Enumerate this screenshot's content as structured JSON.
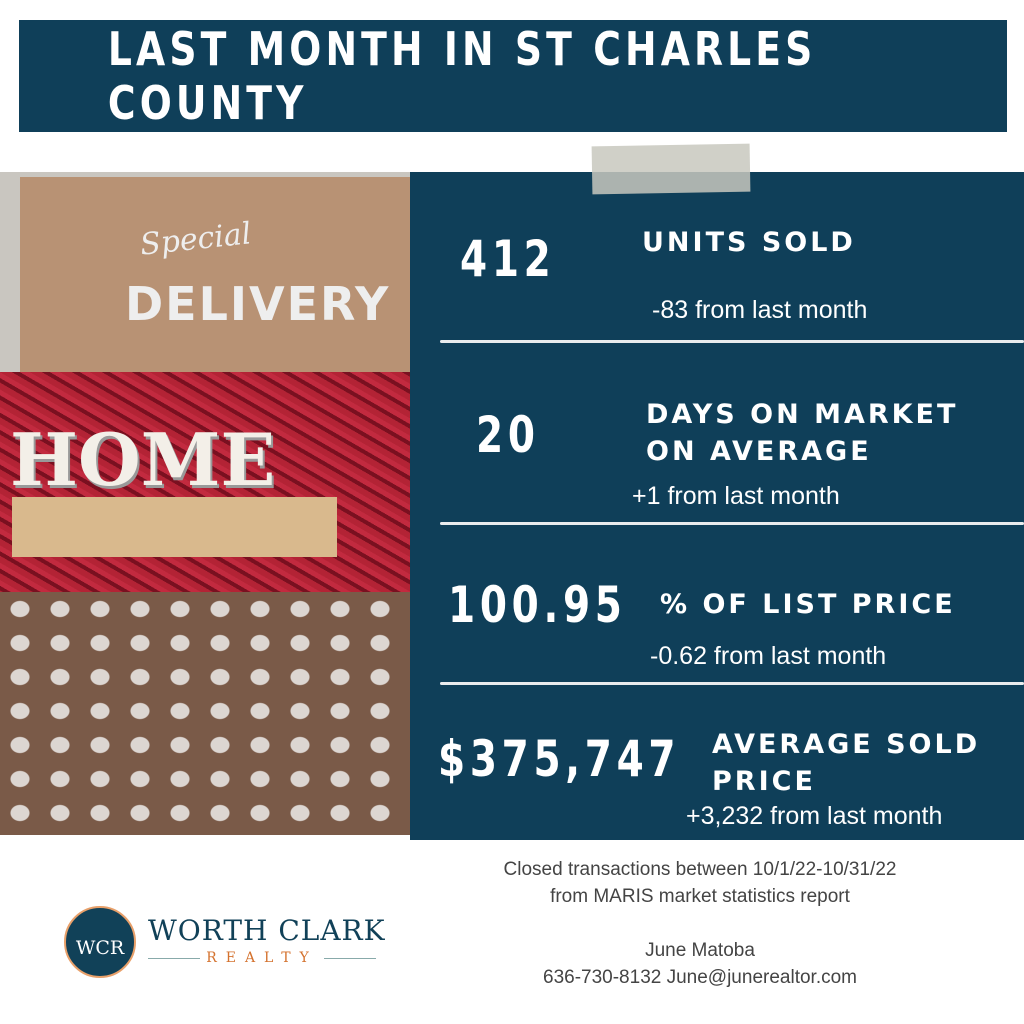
{
  "header": {
    "title": "LAST MONTH IN ST CHARLES COUNTY"
  },
  "photo": {
    "lid_script": "Special",
    "lid_text": "DELIVERY",
    "sign": "HOME"
  },
  "stats": [
    {
      "value": "412",
      "label": "UNITS SOLD",
      "change": "-83  from last month"
    },
    {
      "value": "20",
      "label_line1": "DAYS ON MARKET",
      "label_line2": "ON AVERAGE",
      "change": "+1  from last month"
    },
    {
      "value": "100.95",
      "label": "% OF LIST PRICE",
      "change": "-0.62  from last month"
    },
    {
      "value": "$375,747",
      "label_line1": "AVERAGE SOLD",
      "label_line2": "PRICE",
      "change": "+3,232  from last month"
    }
  ],
  "footer": {
    "source_line1": "Closed transactions between 10/1/22-10/31/22",
    "source_line2": "from MARIS market statistics report",
    "agent_name": "June Matoba",
    "agent_contact": "636-730-8132 June@junerealtor.com"
  },
  "logo": {
    "monogram": "WCR",
    "name": "WORTH CLARK",
    "sub": "REALTY"
  },
  "colors": {
    "navy": "#0f3f59",
    "accent": "#d4722e"
  }
}
